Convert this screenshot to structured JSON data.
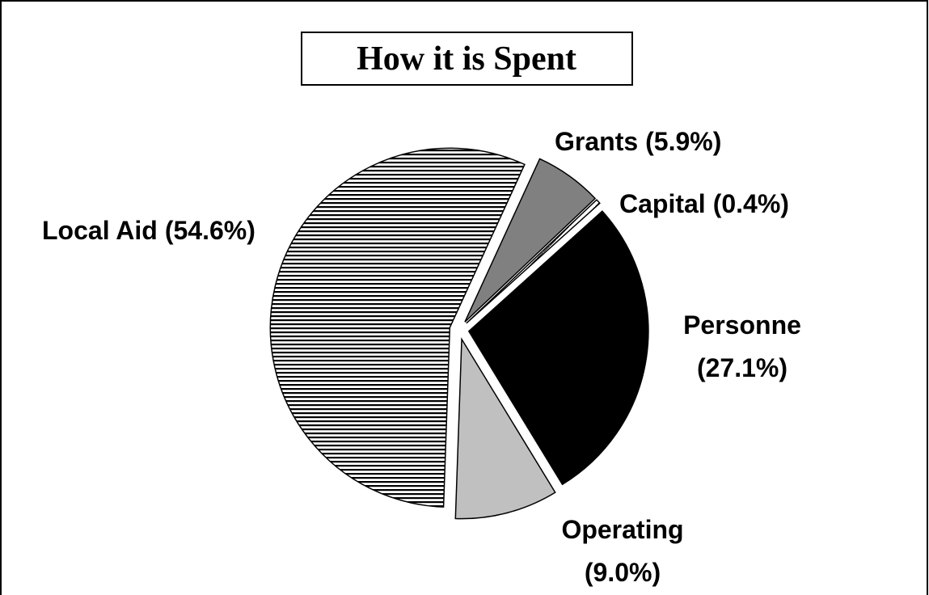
{
  "chart_data": {
    "type": "pie",
    "title": "How it is Spent",
    "categories": [
      "Local Aid",
      "Grants",
      "Capital",
      "Personne",
      "Operating"
    ],
    "values": [
      54.6,
      5.9,
      0.4,
      27.1,
      9.0
    ],
    "value_labels": [
      "(54.6%)",
      "(5.9%)",
      "(0.4%)",
      "(27.1%)",
      "(9.0%)"
    ],
    "colors": [
      "#000000",
      "#808080",
      "#ffffff",
      "#000000",
      "#c0c0c0"
    ],
    "patterns": [
      "horizontal",
      "solid",
      "dashed",
      "solid",
      "solid"
    ]
  }
}
